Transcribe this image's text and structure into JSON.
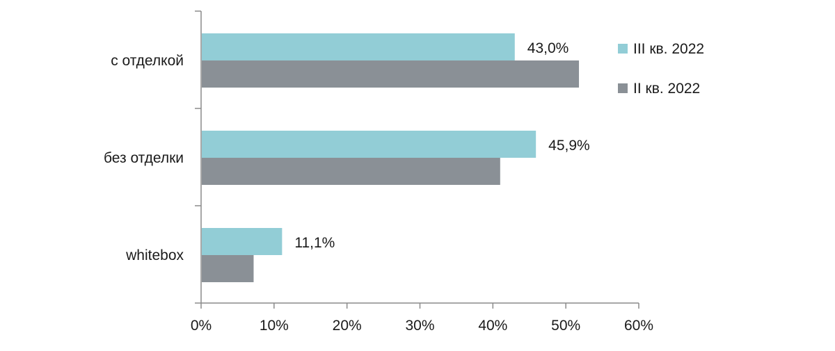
{
  "chart_data": {
    "type": "bar",
    "orientation": "horizontal",
    "categories": [
      "с отделкой",
      "без отделки",
      "whitebox"
    ],
    "series": [
      {
        "name": "III кв. 2022",
        "color": "#92cdd6",
        "values": [
          43.0,
          45.9,
          11.1
        ],
        "labels": [
          "43,0%",
          "45,9%",
          "11,1%"
        ]
      },
      {
        "name": "II кв. 2022",
        "color": "#8a9096",
        "values": [
          51.8,
          41.0,
          7.2
        ]
      }
    ],
    "xlim": [
      0,
      60
    ],
    "x_ticks": [
      0,
      10,
      20,
      30,
      40,
      50,
      60
    ],
    "x_tick_labels": [
      "0%",
      "10%",
      "20%",
      "30%",
      "40%",
      "50%",
      "60%"
    ],
    "title": "",
    "xlabel": "",
    "ylabel": "",
    "grid": false,
    "legend_position": "top-right"
  }
}
